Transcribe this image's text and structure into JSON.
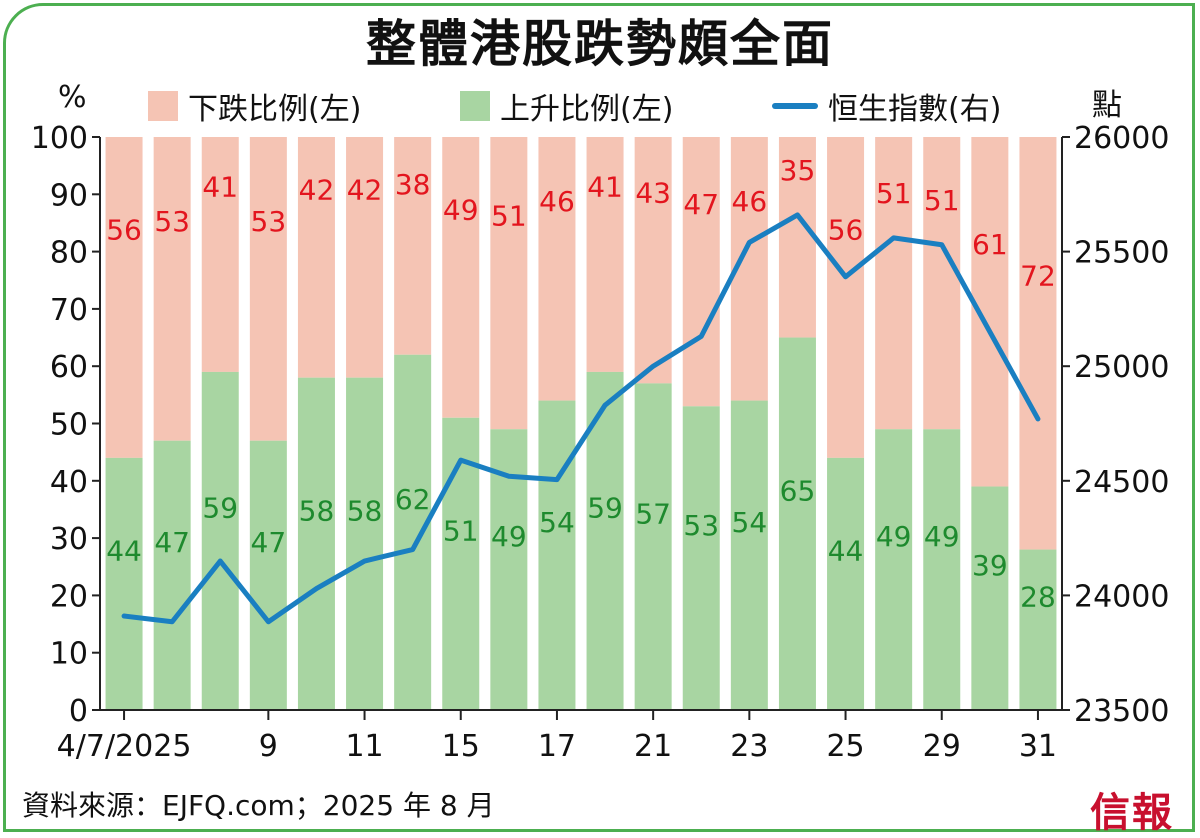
{
  "title": "整體港股跌勢頗全面",
  "left_unit": "%",
  "right_unit": "點",
  "legend": {
    "down": "下跌比例(左)",
    "up": "上升比例(左)",
    "index": "恒生指數(右)"
  },
  "source": "資料來源：EJFQ.com；2025 年 8 月",
  "logo": "信報",
  "colors": {
    "down": "#f5c4b4",
    "up": "#a8d5a2",
    "line": "#1a7fc1",
    "down_label": "#e3151e",
    "up_label": "#1e8a2e",
    "frame": "#4caf50"
  },
  "chart_data": {
    "type": "bar",
    "stacked": true,
    "categories": [
      "4/7/2025",
      "",
      "",
      "9",
      "",
      "11",
      "",
      "15",
      "",
      "17",
      "",
      "21",
      "",
      "23",
      "",
      "25",
      "",
      "29",
      "",
      "31"
    ],
    "series": [
      {
        "name": "上升比例(左)",
        "axis": "left",
        "values": [
          44,
          47,
          59,
          47,
          58,
          58,
          62,
          51,
          49,
          54,
          59,
          57,
          53,
          54,
          65,
          44,
          49,
          49,
          39,
          28
        ]
      },
      {
        "name": "下跌比例(左)",
        "axis": "left",
        "values": [
          56,
          53,
          41,
          53,
          42,
          42,
          38,
          49,
          51,
          46,
          41,
          43,
          47,
          46,
          35,
          56,
          51,
          51,
          61,
          72
        ]
      },
      {
        "name": "恒生指數(右)",
        "axis": "right",
        "type": "line",
        "values": [
          23910,
          23885,
          24150,
          23885,
          24030,
          24150,
          24200,
          24590,
          24520,
          24505,
          24830,
          25000,
          25130,
          25540,
          25660,
          25390,
          25560,
          25530,
          25150,
          24770
        ]
      }
    ],
    "left_axis": {
      "ylim": [
        0,
        100
      ],
      "ticks": [
        0,
        10,
        20,
        30,
        40,
        50,
        60,
        70,
        80,
        90,
        100
      ]
    },
    "right_axis": {
      "ylim": [
        23500,
        26000
      ],
      "ticks": [
        23500,
        24000,
        24500,
        25000,
        25500,
        26000
      ]
    },
    "grid": false,
    "legend_position": "top"
  }
}
